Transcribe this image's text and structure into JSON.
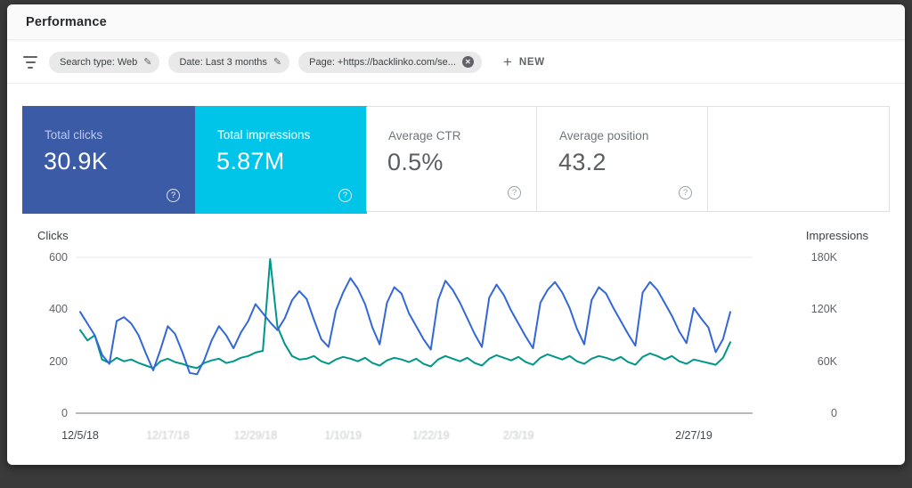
{
  "header": {
    "title": "Performance"
  },
  "icons": {
    "plus": "+",
    "help": "?",
    "remove": "✕",
    "edit": "✎"
  },
  "filters": {
    "chips": [
      {
        "label": "Search type: Web",
        "icon": "edit"
      },
      {
        "label": "Date: Last 3 months",
        "icon": "edit"
      },
      {
        "label": "Page: +https://backlinko.com/se...",
        "icon": "remove"
      }
    ],
    "new_button": {
      "label": "NEW"
    }
  },
  "cards": [
    {
      "label": "Total clicks",
      "value": "30.9K",
      "selected": true,
      "color": "#3c5ba6"
    },
    {
      "label": "Total impressions",
      "value": "5.87M",
      "selected": true,
      "color": "#00c4e8"
    },
    {
      "label": "Average CTR",
      "value": "0.5%",
      "selected": false
    },
    {
      "label": "Average position",
      "value": "43.2",
      "selected": false
    }
  ],
  "chart_data": {
    "type": "line",
    "x_unit": "days since 12/5/18 (daily points)",
    "left_axis": {
      "label": "Clicks",
      "max": 600,
      "ticks": [
        {
          "value": 0,
          "label": "0"
        },
        {
          "value": 200,
          "label": "200"
        },
        {
          "value": 400,
          "label": "400"
        },
        {
          "value": 600,
          "label": "600"
        }
      ]
    },
    "right_axis": {
      "label": "Impressions",
      "max": 180000,
      "ticks": [
        {
          "value": 0,
          "label": "0"
        },
        {
          "value": 60000,
          "label": "60K"
        },
        {
          "value": 120000,
          "label": "120K"
        },
        {
          "value": 180000,
          "label": "180K"
        }
      ]
    },
    "x_ticks": [
      {
        "day": 0,
        "label": "12/5/18",
        "muted": false
      },
      {
        "day": 12,
        "label": "12/17/18",
        "muted": true
      },
      {
        "day": 24,
        "label": "12/29/18",
        "muted": true
      },
      {
        "day": 36,
        "label": "1/10/19",
        "muted": true
      },
      {
        "day": 48,
        "label": "1/22/19",
        "muted": true
      },
      {
        "day": 60,
        "label": "2/3/19",
        "muted": true
      },
      {
        "day": 84,
        "label": "2/27/19",
        "muted": false
      }
    ],
    "series": [
      {
        "name": "Clicks",
        "axis": "left",
        "color": "#3367d6",
        "values": [
          390,
          345,
          300,
          225,
          190,
          355,
          370,
          345,
          300,
          230,
          165,
          245,
          335,
          305,
          235,
          155,
          150,
          205,
          280,
          335,
          300,
          250,
          310,
          355,
          420,
          385,
          350,
          320,
          365,
          435,
          470,
          440,
          360,
          285,
          255,
          395,
          465,
          520,
          480,
          420,
          330,
          265,
          425,
          485,
          460,
          385,
          335,
          285,
          245,
          435,
          510,
          475,
          425,
          365,
          305,
          255,
          445,
          495,
          455,
          395,
          345,
          295,
          250,
          425,
          475,
          505,
          465,
          405,
          325,
          265,
          435,
          485,
          460,
          405,
          355,
          305,
          260,
          465,
          505,
          475,
          425,
          375,
          315,
          270,
          405,
          365,
          330,
          235,
          285,
          390
        ]
      },
      {
        "name": "Impressions",
        "axis": "right",
        "color": "#009688",
        "values": [
          96000,
          84000,
          90000,
          62000,
          58000,
          64000,
          60000,
          62000,
          58000,
          55000,
          52000,
          60000,
          63000,
          59000,
          57000,
          54000,
          52000,
          58000,
          61000,
          63000,
          58000,
          60000,
          64000,
          66000,
          70000,
          72000,
          178000,
          100000,
          80000,
          66000,
          62000,
          63000,
          66000,
          60000,
          57000,
          62000,
          65000,
          63000,
          60000,
          64000,
          58000,
          55000,
          61000,
          64000,
          62000,
          59000,
          63000,
          57000,
          54000,
          62000,
          66000,
          63000,
          60000,
          64000,
          58000,
          55000,
          63000,
          67000,
          64000,
          61000,
          65000,
          59000,
          56000,
          64000,
          68000,
          65000,
          62000,
          66000,
          60000,
          57000,
          63000,
          66000,
          64000,
          61000,
          65000,
          59000,
          56000,
          65000,
          69000,
          66000,
          62000,
          66000,
          60000,
          57000,
          62000,
          60000,
          58000,
          56000,
          64000,
          82000
        ]
      }
    ]
  }
}
